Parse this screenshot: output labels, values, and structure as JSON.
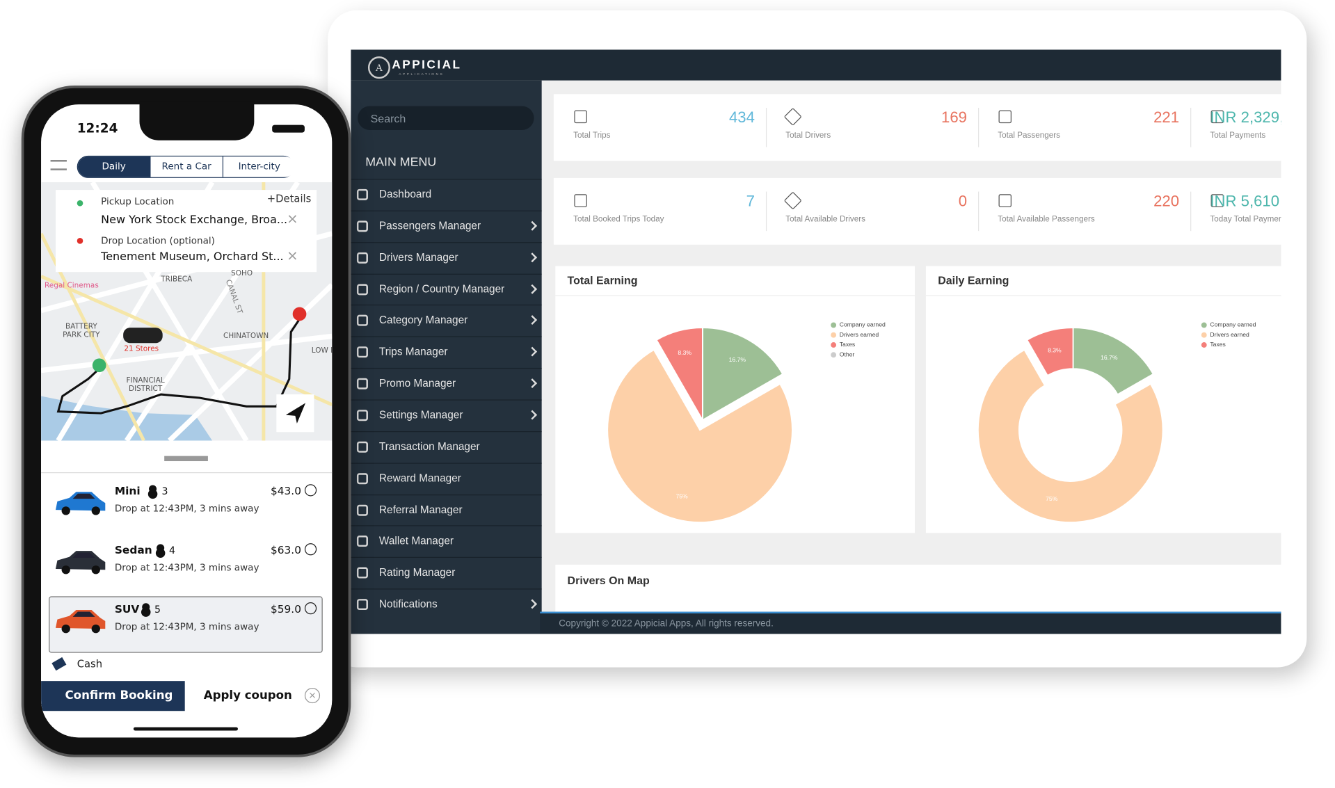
{
  "phone": {
    "time": "12:24",
    "tabs": [
      "Daily",
      "Rent a Car",
      "Inter-city"
    ],
    "pickup_label": "Pickup Location",
    "details": "+Details",
    "pickup": "New York Stock Exchange, Broa...",
    "drop_label": "Drop Location (optional)",
    "drop": "Tenement Museum, Orchard St...",
    "map_labels": [
      "TRIBECA",
      "SOHO",
      "BATTERY PARK CITY",
      "CHINATOWN",
      "FINANCIAL DISTRICT",
      "LOW EAST S",
      "Regal Cinemas",
      "21 Stores",
      "CANAL ST"
    ],
    "rides": [
      {
        "name": "Mini",
        "seats": 3,
        "price": "$43.0",
        "eta": "Drop at 12:43PM, 3 mins away",
        "color": "#1f78d1",
        "selected": false
      },
      {
        "name": "Sedan",
        "seats": 4,
        "price": "$63.0",
        "eta": "Drop at 12:43PM, 3 mins away",
        "color": "#2a2f38",
        "selected": false
      },
      {
        "name": "SUV",
        "seats": 5,
        "price": "$59.0",
        "eta": "Drop at 12:43PM, 3 mins away",
        "color": "#e0562b",
        "selected": true
      }
    ],
    "payment": "Cash",
    "confirm": "Confirm Booking",
    "coupon": "Apply coupon"
  },
  "dashboard": {
    "brand": "APPICIAL",
    "brand_sub": "APPLICATIONS",
    "search": "Search",
    "menu_title": "MAIN MENU",
    "menu": [
      {
        "label": "Dashboard",
        "arrow": false
      },
      {
        "label": "Passengers Manager",
        "arrow": true
      },
      {
        "label": "Drivers Manager",
        "arrow": true
      },
      {
        "label": "Region / Country Manager",
        "arrow": true
      },
      {
        "label": "Category Manager",
        "arrow": true
      },
      {
        "label": "Trips Manager",
        "arrow": true
      },
      {
        "label": "Promo Manager",
        "arrow": true
      },
      {
        "label": "Settings Manager",
        "arrow": true
      },
      {
        "label": "Transaction Manager",
        "arrow": false
      },
      {
        "label": "Reward Manager",
        "arrow": false
      },
      {
        "label": "Referral Manager",
        "arrow": false
      },
      {
        "label": "Wallet Manager",
        "arrow": false
      },
      {
        "label": "Rating Manager",
        "arrow": false
      },
      {
        "label": "Notifications",
        "arrow": true
      }
    ],
    "stats": [
      [
        {
          "value": 434,
          "label": "Total Trips",
          "color": "#5fb7d9"
        },
        {
          "value": 169,
          "label": "Total Drivers",
          "color": "#e8735f"
        },
        {
          "value": 221,
          "label": "Total Passengers",
          "color": "#e8735f"
        },
        {
          "value": "INR 2,329,",
          "label": "Total Payments",
          "color": "#4db6ac"
        }
      ],
      [
        {
          "value": 7,
          "label": "Total Booked Trips Today",
          "color": "#5fb7d9"
        },
        {
          "value": 0,
          "label": "Total Available Drivers",
          "color": "#e8735f"
        },
        {
          "value": 220,
          "label": "Total Available Passengers",
          "color": "#e8735f"
        },
        {
          "value": "INR 5,610",
          "label": "Today Total Paymen",
          "color": "#4db6ac"
        }
      ]
    ],
    "map_title": "Drivers On Map",
    "footer": "Copyright © 2022 Appicial Apps, All rights reserved."
  },
  "chart_data": [
    {
      "type": "pie",
      "title": "Total Earning",
      "categories": [
        "Company earned",
        "Drivers earned",
        "Taxes",
        "Other"
      ],
      "values": [
        16.7,
        75,
        8.3,
        0
      ],
      "value_labels": [
        "16.7%",
        "75%",
        "8.3%",
        null
      ],
      "colors": [
        "#9dbf95",
        "#fdd0a8",
        "#f47f7a",
        "#cccccc"
      ]
    },
    {
      "type": "donut",
      "title": "Daily Earning",
      "categories": [
        "Company earned",
        "Drivers earned",
        "Taxes"
      ],
      "values": [
        16.7,
        75,
        8.3
      ],
      "value_labels": [
        "16.7%",
        "75%",
        "8.3%"
      ],
      "colors": [
        "#9dbf95",
        "#fdd0a8",
        "#f47f7a"
      ]
    }
  ]
}
